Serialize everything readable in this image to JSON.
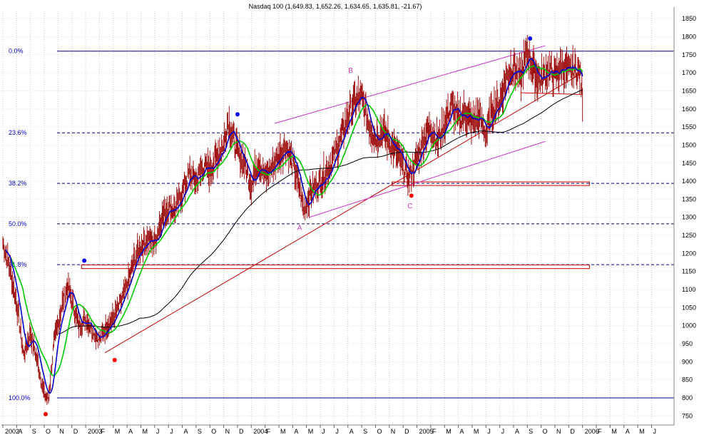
{
  "chart_data": {
    "type": "line",
    "title": "Nasdaq 100 (1,649.83, 1,652.26, 1,634.65, 1,635.81, -21.67)",
    "ylim": [
      725,
      1870
    ],
    "y_ticks": [
      750,
      800,
      850,
      900,
      950,
      1000,
      1050,
      1100,
      1150,
      1200,
      1250,
      1300,
      1350,
      1400,
      1450,
      1500,
      1550,
      1600,
      1650,
      1700,
      1750,
      1800,
      1850
    ],
    "x_ticks": [
      "2002",
      "A",
      "S",
      "O",
      "N",
      "D",
      "2003",
      "F",
      "M",
      "A",
      "M",
      "J",
      "J",
      "A",
      "S",
      "O",
      "N",
      "D",
      "2004",
      "F",
      "M",
      "A",
      "M",
      "J",
      "J",
      "A",
      "S",
      "O",
      "N",
      "D",
      "2005",
      "F",
      "M",
      "A",
      "M",
      "J",
      "J",
      "A",
      "S",
      "O",
      "N",
      "D",
      "2006",
      "F",
      "M",
      "A",
      "M",
      "J"
    ],
    "fib_levels": [
      {
        "label": "0.0%",
        "value": 1760
      },
      {
        "label": "23.6%",
        "value": 1534
      },
      {
        "label": "38.2%",
        "value": 1394
      },
      {
        "label": "50.0%",
        "value": 1282
      },
      {
        "label": "61.8%",
        "value": 1169
      },
      {
        "label": "100.0%",
        "value": 800
      }
    ],
    "price_anchors": [
      {
        "m": 0,
        "v": 1230
      },
      {
        "m": 0.5,
        "v": 1160
      },
      {
        "m": 1,
        "v": 1060
      },
      {
        "m": 1.5,
        "v": 920
      },
      {
        "m": 2,
        "v": 980
      },
      {
        "m": 2.5,
        "v": 900
      },
      {
        "m": 3,
        "v": 810
      },
      {
        "m": 3.3,
        "v": 795
      },
      {
        "m": 3.7,
        "v": 950
      },
      {
        "m": 4.3,
        "v": 1060
      },
      {
        "m": 4.7,
        "v": 1110
      },
      {
        "m": 5,
        "v": 1070
      },
      {
        "m": 5.5,
        "v": 1000
      },
      {
        "m": 6,
        "v": 1020
      },
      {
        "m": 6.5,
        "v": 990
      },
      {
        "m": 7,
        "v": 960
      },
      {
        "m": 7.5,
        "v": 1000
      },
      {
        "m": 8,
        "v": 1020
      },
      {
        "m": 8.5,
        "v": 1060
      },
      {
        "m": 9,
        "v": 1110
      },
      {
        "m": 9.5,
        "v": 1180
      },
      {
        "m": 10,
        "v": 1220
      },
      {
        "m": 10.5,
        "v": 1240
      },
      {
        "m": 11,
        "v": 1230
      },
      {
        "m": 11.5,
        "v": 1300
      },
      {
        "m": 12,
        "v": 1330
      },
      {
        "m": 12.5,
        "v": 1320
      },
      {
        "m": 13,
        "v": 1370
      },
      {
        "m": 13.5,
        "v": 1420
      },
      {
        "m": 14,
        "v": 1400
      },
      {
        "m": 14.5,
        "v": 1440
      },
      {
        "m": 15,
        "v": 1430
      },
      {
        "m": 15.5,
        "v": 1470
      },
      {
        "m": 16,
        "v": 1500
      },
      {
        "m": 16.3,
        "v": 1570
      },
      {
        "m": 16.6,
        "v": 1530
      },
      {
        "m": 17,
        "v": 1480
      },
      {
        "m": 17.5,
        "v": 1450
      },
      {
        "m": 18,
        "v": 1390
      },
      {
        "m": 18.5,
        "v": 1460
      },
      {
        "m": 19,
        "v": 1410
      },
      {
        "m": 19.5,
        "v": 1440
      },
      {
        "m": 20,
        "v": 1470
      },
      {
        "m": 20.5,
        "v": 1500
      },
      {
        "m": 21,
        "v": 1450
      },
      {
        "m": 21.5,
        "v": 1380
      },
      {
        "m": 21.8,
        "v": 1320
      },
      {
        "m": 22.3,
        "v": 1370
      },
      {
        "m": 23,
        "v": 1400
      },
      {
        "m": 23.5,
        "v": 1430
      },
      {
        "m": 24,
        "v": 1470
      },
      {
        "m": 24.5,
        "v": 1520
      },
      {
        "m": 25,
        "v": 1580
      },
      {
        "m": 25.5,
        "v": 1620
      },
      {
        "m": 26,
        "v": 1630
      },
      {
        "m": 26.5,
        "v": 1560
      },
      {
        "m": 27,
        "v": 1520
      },
      {
        "m": 27.5,
        "v": 1540
      },
      {
        "m": 28,
        "v": 1510
      },
      {
        "m": 28.5,
        "v": 1480
      },
      {
        "m": 29,
        "v": 1440
      },
      {
        "m": 29.4,
        "v": 1410
      },
      {
        "m": 30,
        "v": 1460
      },
      {
        "m": 30.5,
        "v": 1520
      },
      {
        "m": 31,
        "v": 1550
      },
      {
        "m": 31.5,
        "v": 1510
      },
      {
        "m": 32,
        "v": 1560
      },
      {
        "m": 32.5,
        "v": 1610
      },
      {
        "m": 33,
        "v": 1570
      },
      {
        "m": 33.5,
        "v": 1590
      },
      {
        "m": 34,
        "v": 1560
      },
      {
        "m": 34.5,
        "v": 1580
      },
      {
        "m": 35,
        "v": 1530
      },
      {
        "m": 35.5,
        "v": 1600
      },
      {
        "m": 36,
        "v": 1620
      },
      {
        "m": 36.5,
        "v": 1690
      },
      {
        "m": 37,
        "v": 1720
      },
      {
        "m": 37.5,
        "v": 1680
      },
      {
        "m": 38,
        "v": 1760
      },
      {
        "m": 38.5,
        "v": 1700
      },
      {
        "m": 39,
        "v": 1680
      },
      {
        "m": 39.5,
        "v": 1710
      },
      {
        "m": 40,
        "v": 1690
      },
      {
        "m": 40.5,
        "v": 1720
      },
      {
        "m": 41,
        "v": 1700
      },
      {
        "m": 41.5,
        "v": 1710
      },
      {
        "m": 41.8,
        "v": 1700
      },
      {
        "m": 42,
        "v": 1636
      }
    ],
    "series": [
      {
        "name": "price",
        "color": "#990000"
      },
      {
        "name": "ma-short",
        "color": "#0000cc"
      },
      {
        "name": "ma-medium",
        "color": "#00cc00"
      },
      {
        "name": "ma-long",
        "color": "#000000"
      }
    ],
    "wave_labels": [
      {
        "text": "A",
        "m": 21.5,
        "v": 1265
      },
      {
        "text": "B",
        "m": 25.2,
        "v": 1700
      },
      {
        "text": "C",
        "m": 29.5,
        "v": 1325
      }
    ],
    "dots": [
      {
        "color": "#0000ff",
        "m": 5.9,
        "v": 1180
      },
      {
        "color": "#ff0000",
        "m": 3.1,
        "v": 755
      },
      {
        "color": "#ff0000",
        "m": 8.1,
        "v": 905
      },
      {
        "color": "#0000ff",
        "m": 17.0,
        "v": 1585
      },
      {
        "color": "#ff0000",
        "m": 29.6,
        "v": 1360
      },
      {
        "color": "#0000ff",
        "m": 38.2,
        "v": 1795
      }
    ],
    "zones": [
      {
        "from_m": 5.7,
        "to_m": 42.5,
        "low": 1158,
        "high": 1168
      },
      {
        "from_m": 28.2,
        "to_m": 42.5,
        "low": 1388,
        "high": 1398
      }
    ],
    "trendlines": [
      {
        "color": "#cc0000",
        "from": {
          "m": 7.4,
          "v": 925
        },
        "to": {
          "m": 42.0,
          "v": 1700
        }
      },
      {
        "color": "#cc33cc",
        "from": {
          "m": 22.2,
          "v": 1300
        },
        "to": {
          "m": 39.3,
          "v": 1510
        }
      },
      {
        "color": "#cc33cc",
        "from": {
          "m": 19.7,
          "v": 1560
        },
        "to": {
          "m": 39.3,
          "v": 1775
        }
      },
      {
        "color": "#cc0000",
        "from": {
          "m": 37.5,
          "v": 1645
        },
        "to": {
          "m": 42.0,
          "v": 1640
        }
      }
    ]
  }
}
